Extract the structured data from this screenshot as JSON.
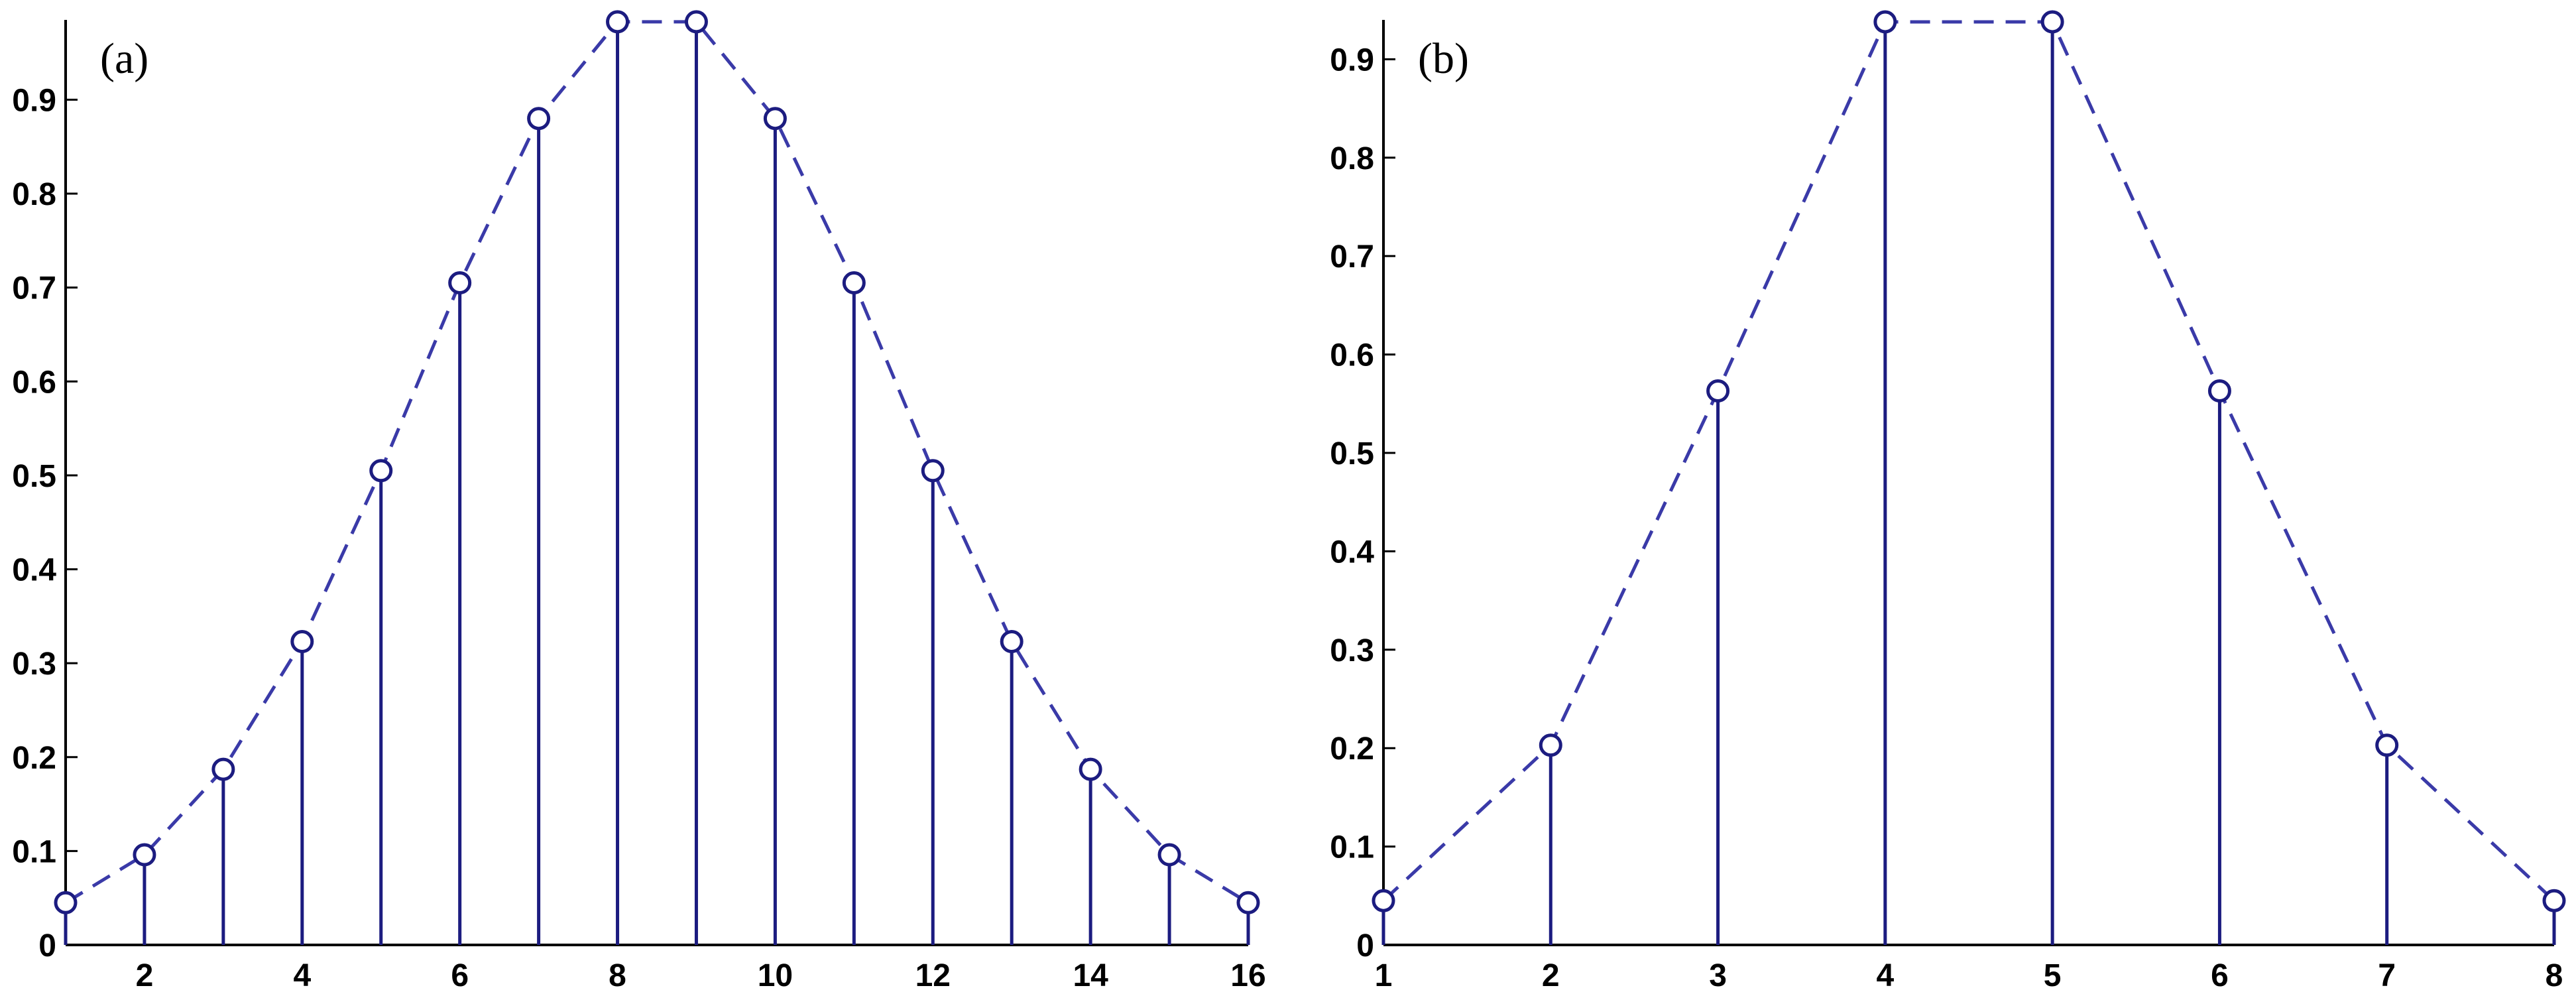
{
  "chart_data": [
    {
      "type": "stem",
      "annotation": "(a)",
      "x": [
        1,
        2,
        3,
        4,
        5,
        6,
        7,
        8,
        9,
        10,
        11,
        12,
        13,
        14,
        15,
        16
      ],
      "values": [
        0.045,
        0.096,
        0.187,
        0.323,
        0.505,
        0.705,
        0.88,
        0.983,
        0.983,
        0.88,
        0.705,
        0.505,
        0.323,
        0.187,
        0.096,
        0.045
      ],
      "color": "#1c1c80",
      "line_color": "#3a3aa8",
      "xlim": [
        1,
        16
      ],
      "xticks": [
        2,
        4,
        6,
        8,
        10,
        12,
        14,
        16
      ],
      "ylim": [
        0,
        0.985
      ],
      "yticks": [
        0,
        0.1,
        0.2,
        0.3,
        0.4,
        0.5,
        0.6,
        0.7,
        0.8,
        0.9
      ]
    },
    {
      "type": "stem",
      "annotation": "(b)",
      "x": [
        1,
        2,
        3,
        4,
        5,
        6,
        7,
        8
      ],
      "values": [
        0.045,
        0.203,
        0.563,
        0.938,
        0.938,
        0.563,
        0.203,
        0.045
      ],
      "color": "#1c1c80",
      "line_color": "#3a3aa8",
      "xlim": [
        1,
        8
      ],
      "xticks": [
        1,
        2,
        3,
        4,
        5,
        6,
        7,
        8
      ],
      "ylim": [
        0,
        0.94
      ],
      "yticks": [
        0,
        0.1,
        0.2,
        0.3,
        0.4,
        0.5,
        0.6,
        0.7,
        0.8,
        0.9
      ]
    }
  ]
}
